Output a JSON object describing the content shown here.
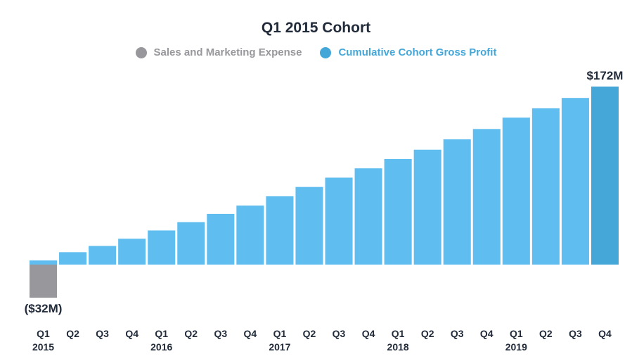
{
  "chart_data": {
    "type": "bar",
    "title": "Q1 2015 Cohort",
    "legend": [
      {
        "label": "Sales and Marketing Expense",
        "color": "#97979c"
      },
      {
        "label": "Cumulative Cohort Gross Profit",
        "color": "#45a7d8"
      }
    ],
    "categories": [
      {
        "quarter": "Q1",
        "year": "2015"
      },
      {
        "quarter": "Q2",
        "year": ""
      },
      {
        "quarter": "Q3",
        "year": ""
      },
      {
        "quarter": "Q4",
        "year": ""
      },
      {
        "quarter": "Q1",
        "year": "2016"
      },
      {
        "quarter": "Q2",
        "year": ""
      },
      {
        "quarter": "Q3",
        "year": ""
      },
      {
        "quarter": "Q4",
        "year": ""
      },
      {
        "quarter": "Q1",
        "year": "2017"
      },
      {
        "quarter": "Q2",
        "year": ""
      },
      {
        "quarter": "Q3",
        "year": ""
      },
      {
        "quarter": "Q4",
        "year": ""
      },
      {
        "quarter": "Q1",
        "year": "2018"
      },
      {
        "quarter": "Q2",
        "year": ""
      },
      {
        "quarter": "Q3",
        "year": ""
      },
      {
        "quarter": "Q4",
        "year": ""
      },
      {
        "quarter": "Q1",
        "year": "2019"
      },
      {
        "quarter": "Q2",
        "year": ""
      },
      {
        "quarter": "Q3",
        "year": ""
      },
      {
        "quarter": "Q4",
        "year": ""
      }
    ],
    "series": [
      {
        "name": "Sales and Marketing Expense",
        "color": "#97979c",
        "values": [
          -32,
          null,
          null,
          null,
          null,
          null,
          null,
          null,
          null,
          null,
          null,
          null,
          null,
          null,
          null,
          null,
          null,
          null,
          null,
          null
        ]
      },
      {
        "name": "Cumulative Cohort Gross Profit",
        "color": "#5fbdf0",
        "highlight_color": "#45a7d8",
        "values": [
          4,
          12,
          18,
          25,
          33,
          41,
          49,
          57,
          66,
          75,
          84,
          93,
          102,
          111,
          121,
          131,
          142,
          151,
          161,
          172
        ]
      }
    ],
    "data_labels": [
      {
        "text": "($32M)",
        "series": 0,
        "index": 0
      },
      {
        "text": "$172M",
        "series": 1,
        "index": 19
      }
    ],
    "ylim": [
      -32,
      172
    ],
    "xlabel": "",
    "ylabel": "",
    "grid": false,
    "legend_position": "top-center"
  }
}
